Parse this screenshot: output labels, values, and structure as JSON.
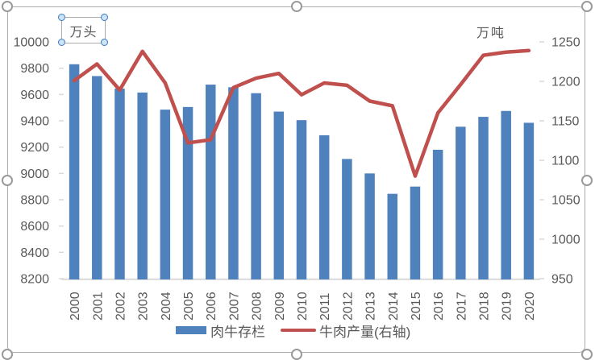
{
  "units": {
    "left": "万头",
    "right": "万吨"
  },
  "colors": {
    "bar": "#4F81BD",
    "line": "#C0504D",
    "axis_text": "#595959",
    "axis_line": "#D9D9D9"
  },
  "legend": {
    "items": [
      {
        "label": "肉牛存栏",
        "swatch": "bar",
        "color": "#4F81BD"
      },
      {
        "label": "牛肉产量(右轴)",
        "swatch": "line",
        "color": "#C0504D"
      }
    ]
  },
  "chart_data": {
    "type": "bar",
    "title": "",
    "categories": [
      "2000",
      "2001",
      "2002",
      "2003",
      "2004",
      "2005",
      "2006",
      "2007",
      "2008",
      "2009",
      "2010",
      "2011",
      "2012",
      "2013",
      "2014",
      "2015",
      "2016",
      "2017",
      "2018",
      "2019",
      "2020"
    ],
    "series": [
      {
        "name": "肉牛存栏",
        "type": "bar",
        "axis": "left",
        "unit": "万头",
        "color": "#4F81BD",
        "values": [
          9830,
          9740,
          9645,
          9615,
          9485,
          9505,
          9675,
          9655,
          9610,
          9470,
          9405,
          9290,
          9110,
          9000,
          8845,
          8900,
          9180,
          9355,
          9430,
          9475,
          9385
        ]
      },
      {
        "name": "牛肉产量(右轴)",
        "type": "line",
        "axis": "right",
        "unit": "万吨",
        "color": "#C0504D",
        "values": [
          1201,
          1222,
          1189,
          1238,
          1198,
          1122,
          1126,
          1192,
          1204,
          1210,
          1183,
          1198,
          1195,
          1175,
          1169,
          1080,
          1160,
          1196,
          1233,
          1237,
          1239
        ]
      }
    ],
    "left_axis": {
      "label": "万头",
      "min": 8200,
      "max": 10000,
      "step": 200,
      "ticks": [
        "10000",
        "9800",
        "9600",
        "9400",
        "9200",
        "9000",
        "8800",
        "8600",
        "8400",
        "8200"
      ]
    },
    "right_axis": {
      "label": "万吨",
      "min": 950,
      "max": 1250,
      "step": 50,
      "ticks": [
        "1250",
        "1200",
        "1150",
        "1100",
        "1050",
        "1000",
        "950"
      ]
    },
    "grid": false,
    "legend_position": "bottom"
  }
}
